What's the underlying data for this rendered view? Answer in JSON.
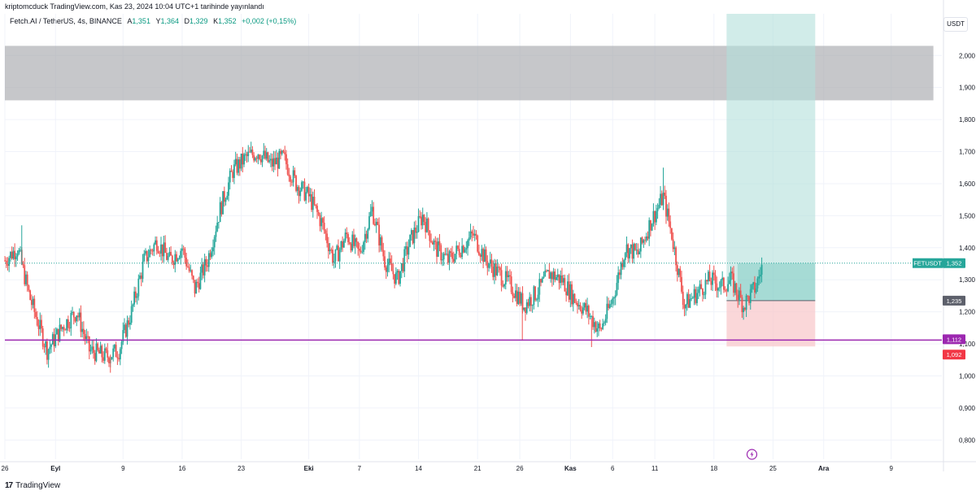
{
  "header": {
    "publish_line": "kriptomcduck TradingView.com, Kas 23, 2024 10:04 UTC+1 tarihinde yayınlandı",
    "symbol": "Fetch.AI / TetherUS, 4s, BINANCE",
    "ohlc": [
      {
        "label": "A",
        "value": "1,351"
      },
      {
        "label": "Y",
        "value": "1,364"
      },
      {
        "label": "D",
        "value": "1,329"
      },
      {
        "label": "K",
        "value": "1,352"
      }
    ],
    "change": "+0,002 (+0,15%)",
    "currency_button": "USDT"
  },
  "footer": {
    "logo_text": "17",
    "brand": "TradingView"
  },
  "colors": {
    "up": "#26a69a",
    "down": "#ef5350",
    "grey_zone": "#a7a9ae",
    "profit_zone": "#b2dfdb",
    "loss_zone": "#f8c9cc",
    "support_line": "#9c27b0",
    "price_line": "#26a69a",
    "label_dark": "#5d606b",
    "label_red": "#f23645"
  },
  "chart_data": {
    "type": "candlestick",
    "symbol": "FETUSDT",
    "timeframe": "4s",
    "ylim": [
      0.74,
      2.13
    ],
    "y_ticks": [
      "0,800",
      "0,900",
      "1,000",
      "1,100",
      "1,200",
      "1,300",
      "1,400",
      "1,500",
      "1,600",
      "1,700",
      "1,800",
      "1,900",
      "2,000"
    ],
    "y_tick_values": [
      0.8,
      0.9,
      1.0,
      1.1,
      1.2,
      1.3,
      1.4,
      1.5,
      1.6,
      1.7,
      1.8,
      1.9,
      2.0
    ],
    "x_ticks": [
      {
        "label": "26",
        "bold": false,
        "day": 0
      },
      {
        "label": "Eyl",
        "bold": true,
        "day": 6
      },
      {
        "label": "9",
        "bold": false,
        "day": 14
      },
      {
        "label": "16",
        "bold": false,
        "day": 21
      },
      {
        "label": "23",
        "bold": false,
        "day": 28
      },
      {
        "label": "Eki",
        "bold": true,
        "day": 36
      },
      {
        "label": "7",
        "bold": false,
        "day": 42
      },
      {
        "label": "14",
        "bold": false,
        "day": 49
      },
      {
        "label": "21",
        "bold": false,
        "day": 56
      },
      {
        "label": "26",
        "bold": false,
        "day": 61
      },
      {
        "label": "Kas",
        "bold": true,
        "day": 67
      },
      {
        "label": "6",
        "bold": false,
        "day": 72
      },
      {
        "label": "11",
        "bold": false,
        "day": 77
      },
      {
        "label": "18",
        "bold": false,
        "day": 84
      },
      {
        "label": "25",
        "bold": false,
        "day": 91
      },
      {
        "label": "Ara",
        "bold": true,
        "day": 97
      },
      {
        "label": "9",
        "bold": false,
        "day": 105
      }
    ],
    "x_range_days": [
      0,
      111
    ],
    "price_path": [
      [
        0,
        1.36
      ],
      [
        1.5,
        1.4
      ],
      [
        3,
        1.24
      ],
      [
        5,
        1.08
      ],
      [
        7,
        1.16
      ],
      [
        8.5,
        1.2
      ],
      [
        10,
        1.08
      ],
      [
        12,
        1.06
      ],
      [
        13.5,
        1.08
      ],
      [
        15,
        1.2
      ],
      [
        16.5,
        1.36
      ],
      [
        18,
        1.42
      ],
      [
        19.5,
        1.36
      ],
      [
        21,
        1.4
      ],
      [
        22.5,
        1.27
      ],
      [
        24,
        1.36
      ],
      [
        25.5,
        1.52
      ],
      [
        27,
        1.64
      ],
      [
        28.5,
        1.68
      ],
      [
        30,
        1.7
      ],
      [
        31.5,
        1.66
      ],
      [
        33,
        1.68
      ],
      [
        34.5,
        1.6
      ],
      [
        36,
        1.56
      ],
      [
        37.5,
        1.48
      ],
      [
        39,
        1.36
      ],
      [
        40.5,
        1.44
      ],
      [
        42,
        1.38
      ],
      [
        43.5,
        1.52
      ],
      [
        45,
        1.36
      ],
      [
        46.5,
        1.3
      ],
      [
        48,
        1.42
      ],
      [
        49.5,
        1.5
      ],
      [
        51,
        1.4
      ],
      [
        52.5,
        1.36
      ],
      [
        54,
        1.4
      ],
      [
        55.5,
        1.44
      ],
      [
        57,
        1.36
      ],
      [
        58.5,
        1.32
      ],
      [
        60,
        1.28
      ],
      [
        61.5,
        1.22
      ],
      [
        63,
        1.26
      ],
      [
        64.5,
        1.32
      ],
      [
        66,
        1.3
      ],
      [
        67.5,
        1.24
      ],
      [
        69,
        1.2
      ],
      [
        70.5,
        1.14
      ],
      [
        72,
        1.24
      ],
      [
        73.5,
        1.4
      ],
      [
        75,
        1.38
      ],
      [
        76.5,
        1.48
      ],
      [
        78,
        1.56
      ],
      [
        79,
        1.44
      ],
      [
        80.5,
        1.22
      ],
      [
        82,
        1.26
      ],
      [
        83.5,
        1.3
      ],
      [
        85,
        1.28
      ],
      [
        86,
        1.3
      ],
      [
        87.5,
        1.22
      ],
      [
        89,
        1.28
      ],
      [
        89.8,
        1.352
      ]
    ],
    "wick_spikes": [
      {
        "day": 2,
        "high": 1.47
      },
      {
        "day": 61.3,
        "low": 1.11
      },
      {
        "day": 69.5,
        "low": 1.09
      },
      {
        "day": 78,
        "high": 1.65
      },
      {
        "day": 12.5,
        "low": 1.01
      }
    ],
    "grey_zone": {
      "day_start": 0,
      "day_end": 110,
      "low": 1.86,
      "high": 2.03
    },
    "position": {
      "day_start": 85.5,
      "day_end": 96,
      "entry": 1.235,
      "target": 2.13,
      "stop": 1.092,
      "entry_fill_start": 86.8
    },
    "support_line": 1.112,
    "current_price": 1.352,
    "labels": [
      {
        "text": "FETUSDT",
        "price": 1.352,
        "kind": "symbol"
      },
      {
        "text": "1,352",
        "price": 1.352,
        "kind": "price"
      },
      {
        "text": "1,235",
        "price": 1.235,
        "kind": "entry"
      },
      {
        "text": "1,112",
        "price": 1.112,
        "kind": "support"
      },
      {
        "text": "1,092",
        "price": 1.092,
        "kind": "stop"
      }
    ],
    "alert_icon_day": 88.5
  }
}
